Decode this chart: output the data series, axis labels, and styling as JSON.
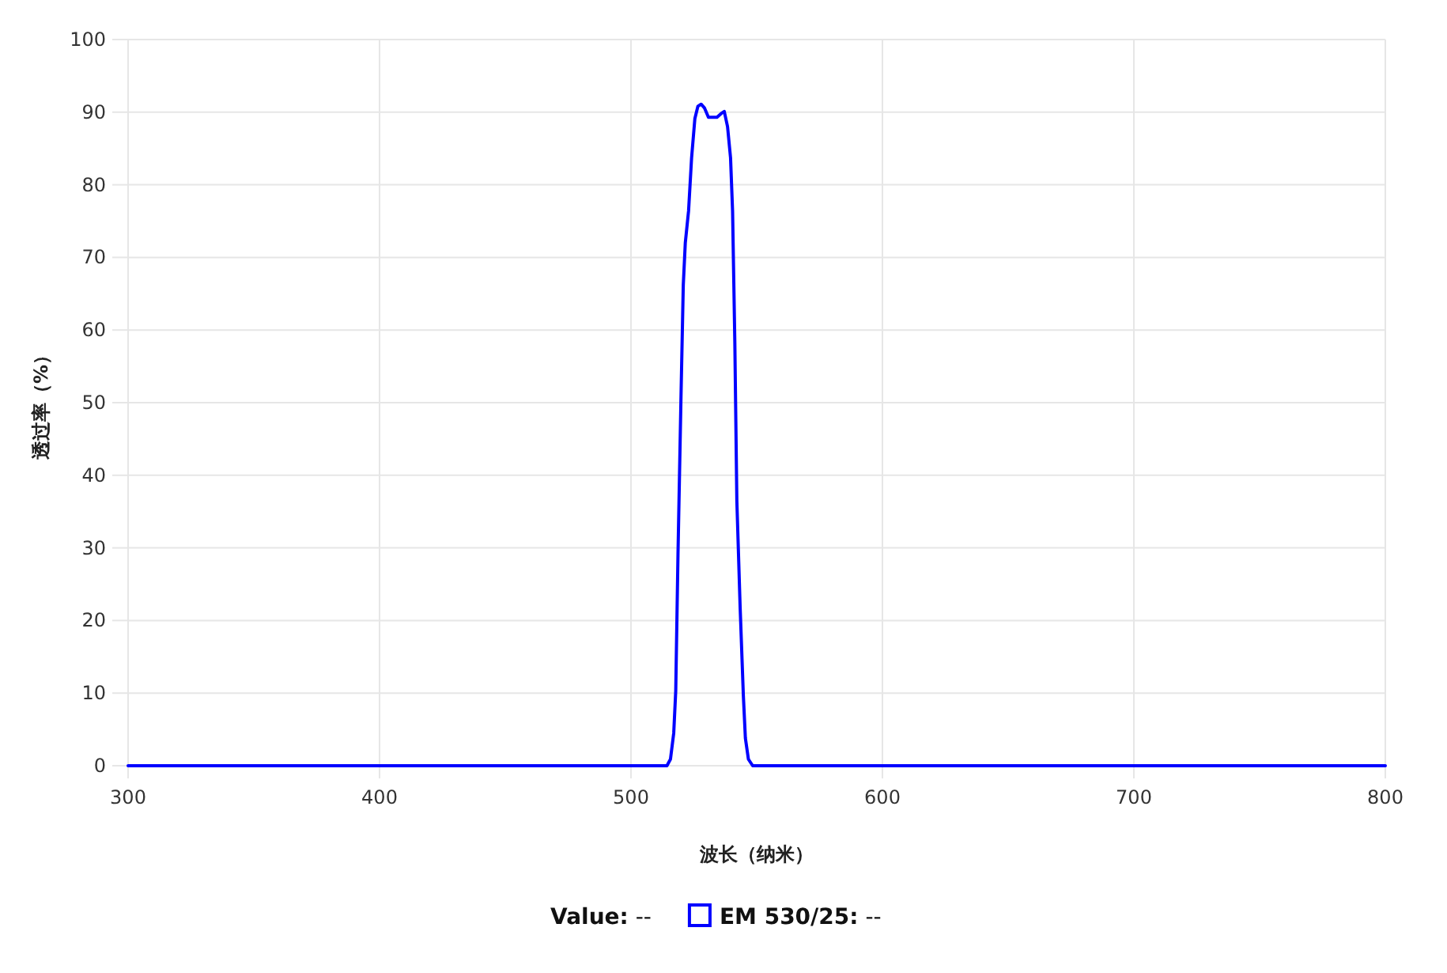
{
  "chart_data": {
    "type": "line",
    "xlabel": "波长（纳米）",
    "ylabel": "透过率（%）",
    "x": [
      300,
      514.3,
      515.7,
      517.0,
      517.8,
      518.7,
      519.9,
      520.8,
      521.6,
      522.9,
      524.1,
      525.4,
      526.6,
      527.9,
      529.2,
      530.8,
      534.2,
      535.8,
      537.1,
      538.4,
      539.6,
      540.4,
      541.3,
      542.1,
      543.4,
      544.7,
      545.5,
      546.7,
      548.4,
      800
    ],
    "series": [
      {
        "name": "EM 530/25",
        "color": "#0000ff",
        "values": [
          0,
          0,
          0.9,
          4.5,
          10.3,
          29.2,
          51,
          66.2,
          72,
          76.4,
          83.7,
          89.1,
          90.8,
          91.1,
          90.6,
          89.3,
          89.3,
          89.8,
          90.1,
          88,
          83.7,
          76.4,
          58.2,
          36.5,
          21.9,
          9.6,
          3.8,
          0.9,
          0,
          0
        ]
      }
    ],
    "xlim": [
      300,
      800
    ],
    "xticks": [
      300,
      400,
      500,
      600,
      700,
      800
    ],
    "ylim": [
      0,
      100
    ],
    "yticks": [
      0,
      10,
      20,
      30,
      40,
      50,
      60,
      70,
      80,
      90,
      100
    ],
    "grid": true,
    "legend": "bottom",
    "annotations": [
      "**Value:**  --",
      "**:**  --"
    ]
  }
}
